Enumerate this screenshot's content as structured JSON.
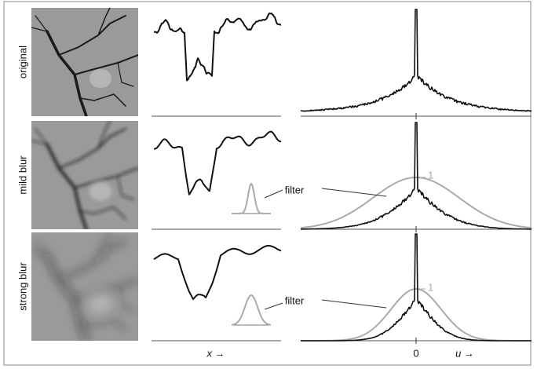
{
  "rows": [
    {
      "label": "original"
    },
    {
      "label": "mild blur",
      "filter_label": "filter",
      "peak_label": "1"
    },
    {
      "label": "strong blur",
      "filter_label": "filter",
      "peak_label": "1"
    }
  ],
  "axes": {
    "x_label": "x →",
    "origin_label": "0",
    "u_label": "u →"
  }
}
